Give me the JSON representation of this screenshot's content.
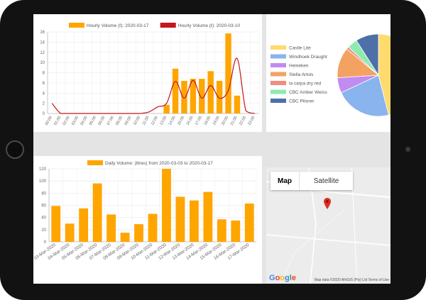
{
  "hourly_chart": {
    "chart_data": {
      "type": "bar",
      "categories": [
        "00:00",
        "01:00",
        "02:00",
        "03:00",
        "04:00",
        "05:00",
        "06:00",
        "07:00",
        "08:00",
        "09:00",
        "10:00",
        "11:00",
        "12:00",
        "13:00",
        "14:00",
        "15:00",
        "16:00",
        "17:00",
        "18:00",
        "19:00",
        "20:00",
        "21:00",
        "22:00",
        "23:00"
      ],
      "ylim": [
        0,
        16
      ],
      "yticks": [
        0,
        2,
        4,
        6,
        8,
        10,
        12,
        14,
        16
      ],
      "grid": true,
      "legend_placement": "top",
      "series": [
        {
          "name": "Hourly Volume (ℓ): 2020-03-17",
          "type": "bar",
          "color": "#FFA500",
          "values": [
            0,
            0,
            0,
            0,
            0,
            0,
            0,
            0,
            0,
            0,
            0,
            0,
            0,
            1.7,
            8.8,
            6.4,
            6.8,
            6.8,
            8.3,
            6.4,
            15.7,
            3.5,
            0,
            0
          ]
        },
        {
          "name": "Hourly Volume (ℓ): 2020-03-10",
          "type": "line",
          "color": "#C4161C",
          "values": [
            2.0,
            0,
            0,
            0,
            0,
            0,
            0,
            0,
            0,
            0,
            0,
            0.3,
            1.3,
            2.0,
            6.3,
            3.0,
            6.5,
            3.0,
            5.5,
            3.0,
            4.5,
            10.8,
            0.5,
            0
          ]
        }
      ]
    }
  },
  "daily_chart": {
    "chart_data": {
      "type": "bar",
      "categories": [
        "03-Mar-2020",
        "04-Mar-2020",
        "05-Mar-2020",
        "06-Mar-2020",
        "07-Mar-2020",
        "08-Mar-2020",
        "09-Mar-2020",
        "10-Mar-2020",
        "11-Mar-2020",
        "12-Mar-2020",
        "13-Mar-2020",
        "14-Mar-2020",
        "15-Mar-2020",
        "16-Mar-2020",
        "17-Mar-2020"
      ],
      "ylim": [
        0,
        120
      ],
      "yticks": [
        0,
        20,
        40,
        60,
        80,
        100,
        120
      ],
      "grid": true,
      "legend_placement": "top",
      "series": [
        {
          "name": "Daily Volume: (litres) from 2020-03-03 to 2020-03-17",
          "color": "#FFA500",
          "values": [
            59,
            30,
            55,
            96,
            45,
            15,
            29,
            46,
            120,
            74,
            68,
            82,
            37,
            35,
            63
          ]
        }
      ]
    }
  },
  "pie_chart": {
    "chart_data": {
      "type": "pie",
      "legend_placement": "left",
      "series": [
        {
          "name": "Castle Lite",
          "value": 46,
          "color": "#FFDB6E"
        },
        {
          "name": "Windhoek Draught",
          "value": 22,
          "color": "#8AB4EE"
        },
        {
          "name": "Heineken",
          "value": 6,
          "color": "#C18BF2"
        },
        {
          "name": "Stella Artois",
          "value": 12,
          "color": "#F4A261"
        },
        {
          "name": "la carpa dry red",
          "value": 1,
          "color": "#F28B82"
        },
        {
          "name": "CBC Amber Weiss",
          "value": 4,
          "color": "#8EEBB0"
        },
        {
          "name": "CBC Pilsner",
          "value": 9,
          "color": "#4F6FA8"
        }
      ]
    }
  },
  "map": {
    "type_map": "Map",
    "type_satellite": "Satellite",
    "logo": "Google",
    "attribution": "Map data ©2020 AfriGIS (Pty) Ltd    Terms of Use",
    "pin_color": "#D93025"
  }
}
